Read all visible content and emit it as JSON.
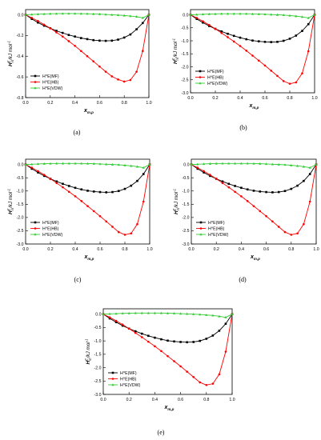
{
  "chart_data": [
    {
      "type": "line",
      "panel_label": "(a)",
      "xlabel": "x",
      "xlabel_sub": "m,p",
      "ylabel": "H",
      "ylabel_sup": "E",
      "ylabel_sub": "m",
      "ylabel_unit": "/kJ mol",
      "ylabel_unit_sup": "-1",
      "xlim": [
        0.0,
        1.0
      ],
      "ylim": [
        -0.8,
        0.05
      ],
      "xticks": [
        "0.0",
        "0.2",
        "0.4",
        "0.6",
        "0.8",
        "1.0"
      ],
      "yticks": [
        "0.0",
        "-0.2",
        "-0.4",
        "-0.6",
        "-0.8"
      ],
      "ytick_values": [
        0.0,
        -0.2,
        -0.4,
        -0.6,
        -0.8
      ],
      "legend_position": "bottom-left",
      "x": [
        0.0,
        0.05,
        0.1,
        0.15,
        0.2,
        0.25,
        0.3,
        0.35,
        0.4,
        0.45,
        0.5,
        0.55,
        0.6,
        0.65,
        0.7,
        0.75,
        0.8,
        0.85,
        0.9,
        0.95,
        1.0
      ],
      "series": [
        {
          "name": "H^E(MF)",
          "color": "#000000",
          "marker": "square",
          "values": [
            0.0,
            -0.04,
            -0.075,
            -0.105,
            -0.13,
            -0.155,
            -0.175,
            -0.195,
            -0.21,
            -0.225,
            -0.235,
            -0.245,
            -0.25,
            -0.252,
            -0.25,
            -0.24,
            -0.22,
            -0.19,
            -0.14,
            -0.08,
            0.0
          ]
        },
        {
          "name": "H^E(HB)",
          "color": "#ff0000",
          "marker": "circle",
          "values": [
            0.0,
            -0.03,
            -0.06,
            -0.095,
            -0.13,
            -0.17,
            -0.21,
            -0.255,
            -0.3,
            -0.35,
            -0.4,
            -0.45,
            -0.5,
            -0.55,
            -0.595,
            -0.625,
            -0.645,
            -0.63,
            -0.55,
            -0.35,
            0.0
          ]
        },
        {
          "name": "H^E(VDW)",
          "color": "#33cc33",
          "marker": "triangle",
          "values": [
            0.0,
            0.003,
            0.006,
            0.008,
            0.01,
            0.011,
            0.012,
            0.012,
            0.012,
            0.011,
            0.01,
            0.008,
            0.006,
            0.003,
            0.0,
            -0.003,
            -0.007,
            -0.012,
            -0.018,
            -0.03,
            0.0
          ]
        }
      ]
    },
    {
      "type": "line",
      "panel_label": "(b)",
      "xlabel": "x",
      "xlabel_sub": "m,p",
      "ylabel": "H",
      "ylabel_sup": "E",
      "ylabel_sub": "m",
      "ylabel_unit": "/kJ mol",
      "ylabel_unit_sup": "-1",
      "xlim": [
        0.0,
        1.0
      ],
      "ylim": [
        -3.0,
        0.2
      ],
      "xticks": [
        "0.0",
        "0.2",
        "0.4",
        "0.6",
        "0.8",
        "1.0"
      ],
      "yticks": [
        "0.0",
        "-0.5",
        "-1.0",
        "-1.5",
        "-2.0",
        "-2.5",
        "-3.0"
      ],
      "ytick_values": [
        0.0,
        -0.5,
        -1.0,
        -1.5,
        -2.0,
        -2.5,
        -3.0
      ],
      "legend_position": "bottom-left",
      "x": [
        0.0,
        0.05,
        0.1,
        0.15,
        0.2,
        0.25,
        0.3,
        0.35,
        0.4,
        0.45,
        0.5,
        0.55,
        0.6,
        0.65,
        0.7,
        0.75,
        0.8,
        0.85,
        0.9,
        0.95,
        1.0
      ],
      "series": [
        {
          "name": "H^E(MF)",
          "color": "#000000",
          "marker": "square",
          "values": [
            0.0,
            -0.16,
            -0.3,
            -0.43,
            -0.54,
            -0.64,
            -0.73,
            -0.81,
            -0.88,
            -0.94,
            -0.99,
            -1.02,
            -1.04,
            -1.05,
            -1.04,
            -1.0,
            -0.92,
            -0.8,
            -0.62,
            -0.36,
            0.0
          ]
        },
        {
          "name": "H^E(HB)",
          "color": "#ff0000",
          "marker": "circle",
          "values": [
            0.0,
            -0.12,
            -0.25,
            -0.39,
            -0.54,
            -0.7,
            -0.86,
            -1.03,
            -1.2,
            -1.38,
            -1.57,
            -1.76,
            -1.95,
            -2.15,
            -2.35,
            -2.55,
            -2.65,
            -2.6,
            -2.25,
            -1.4,
            0.0
          ]
        },
        {
          "name": "H^E(VDW)",
          "color": "#33cc33",
          "marker": "triangle",
          "values": [
            0.0,
            0.01,
            0.02,
            0.03,
            0.035,
            0.04,
            0.04,
            0.04,
            0.04,
            0.04,
            0.035,
            0.03,
            0.02,
            0.01,
            0.0,
            -0.01,
            -0.03,
            -0.05,
            -0.08,
            -0.12,
            0.0
          ]
        }
      ]
    },
    {
      "type": "line",
      "panel_label": "(c)",
      "xlabel": "x",
      "xlabel_sub": "m,p",
      "ylabel": "H",
      "ylabel_sup": "E",
      "ylabel_sub": "m",
      "ylabel_unit": "/kJ mol",
      "ylabel_unit_sup": "-1",
      "xlim": [
        0.0,
        1.0
      ],
      "ylim": [
        -3.0,
        0.2
      ],
      "xticks": [
        "0.0",
        "0.2",
        "0.4",
        "0.6",
        "0.8",
        "1.0"
      ],
      "yticks": [
        "0.0",
        "-0.5",
        "-1.0",
        "-1.5",
        "-2.0",
        "-2.5",
        "-3.0"
      ],
      "ytick_values": [
        0.0,
        -0.5,
        -1.0,
        -1.5,
        -2.0,
        -2.5,
        -3.0
      ],
      "legend_position": "bottom-left",
      "x": [
        0.0,
        0.05,
        0.1,
        0.15,
        0.2,
        0.25,
        0.3,
        0.35,
        0.4,
        0.45,
        0.5,
        0.55,
        0.6,
        0.65,
        0.7,
        0.75,
        0.8,
        0.85,
        0.9,
        0.95,
        1.0
      ],
      "series": [
        {
          "name": "H^E(MF)",
          "color": "#000000",
          "marker": "square",
          "values": [
            0.0,
            -0.16,
            -0.3,
            -0.43,
            -0.54,
            -0.64,
            -0.73,
            -0.81,
            -0.88,
            -0.94,
            -0.99,
            -1.02,
            -1.04,
            -1.05,
            -1.04,
            -1.0,
            -0.92,
            -0.8,
            -0.62,
            -0.36,
            0.0
          ]
        },
        {
          "name": "H^E(HB)",
          "color": "#ff0000",
          "marker": "circle",
          "values": [
            0.0,
            -0.12,
            -0.25,
            -0.39,
            -0.54,
            -0.7,
            -0.86,
            -1.03,
            -1.2,
            -1.38,
            -1.57,
            -1.76,
            -1.95,
            -2.15,
            -2.35,
            -2.55,
            -2.65,
            -2.6,
            -2.25,
            -1.4,
            0.0
          ]
        },
        {
          "name": "H^E(VDW)",
          "color": "#33cc33",
          "marker": "triangle",
          "values": [
            0.0,
            0.01,
            0.02,
            0.03,
            0.035,
            0.04,
            0.04,
            0.04,
            0.04,
            0.04,
            0.035,
            0.03,
            0.02,
            0.01,
            0.0,
            -0.01,
            -0.03,
            -0.05,
            -0.08,
            -0.12,
            0.0
          ]
        }
      ]
    },
    {
      "type": "line",
      "panel_label": "(d)",
      "xlabel": "x",
      "xlabel_sub": "m,p",
      "ylabel": "H",
      "ylabel_sup": "E",
      "ylabel_sub": "m",
      "ylabel_unit": "/kJ mol",
      "ylabel_unit_sup": "-1",
      "xlim": [
        0.0,
        1.0
      ],
      "ylim": [
        -3.0,
        0.2
      ],
      "xticks": [
        "0.0",
        "0.2",
        "0.4",
        "0.6",
        "0.8",
        "1.0"
      ],
      "yticks": [
        "0.0",
        "-0.5",
        "-1.0",
        "-1.5",
        "-2.0",
        "-2.5",
        "-3.0"
      ],
      "ytick_values": [
        0.0,
        -0.5,
        -1.0,
        -1.5,
        -2.0,
        -2.5,
        -3.0
      ],
      "legend_position": "bottom-left",
      "x": [
        0.0,
        0.05,
        0.1,
        0.15,
        0.2,
        0.25,
        0.3,
        0.35,
        0.4,
        0.45,
        0.5,
        0.55,
        0.6,
        0.65,
        0.7,
        0.75,
        0.8,
        0.85,
        0.9,
        0.95,
        1.0
      ],
      "series": [
        {
          "name": "H^E(MF)",
          "color": "#000000",
          "marker": "square",
          "values": [
            0.0,
            -0.16,
            -0.3,
            -0.43,
            -0.54,
            -0.64,
            -0.73,
            -0.81,
            -0.88,
            -0.94,
            -0.99,
            -1.02,
            -1.04,
            -1.05,
            -1.04,
            -1.0,
            -0.92,
            -0.8,
            -0.62,
            -0.36,
            0.0
          ]
        },
        {
          "name": "H^E(HB)",
          "color": "#ff0000",
          "marker": "circle",
          "values": [
            0.0,
            -0.12,
            -0.25,
            -0.39,
            -0.54,
            -0.7,
            -0.86,
            -1.03,
            -1.2,
            -1.38,
            -1.57,
            -1.76,
            -1.95,
            -2.15,
            -2.35,
            -2.55,
            -2.65,
            -2.6,
            -2.25,
            -1.4,
            0.0
          ]
        },
        {
          "name": "H^E(VDW)",
          "color": "#33cc33",
          "marker": "triangle",
          "values": [
            0.0,
            0.01,
            0.02,
            0.03,
            0.035,
            0.04,
            0.04,
            0.04,
            0.04,
            0.04,
            0.035,
            0.03,
            0.02,
            0.01,
            0.0,
            -0.01,
            -0.03,
            -0.05,
            -0.08,
            -0.12,
            0.0
          ]
        }
      ]
    },
    {
      "type": "line",
      "panel_label": "(e)",
      "xlabel": "x",
      "xlabel_sub": "m,p",
      "ylabel": "H",
      "ylabel_sup": "E",
      "ylabel_sub": "m",
      "ylabel_unit": "/kJ mol",
      "ylabel_unit_sup": "-1",
      "xlim": [
        0.0,
        1.0
      ],
      "ylim": [
        -3.0,
        0.2
      ],
      "xticks": [
        "0.0",
        "0.2",
        "0.4",
        "0.6",
        "0.8",
        "1.0"
      ],
      "yticks": [
        "0.0",
        "-0.5",
        "-1.0",
        "-1.5",
        "-2.0",
        "-2.5",
        "-3.0"
      ],
      "ytick_values": [
        0.0,
        -0.5,
        -1.0,
        -1.5,
        -2.0,
        -2.5,
        -3.0
      ],
      "legend_position": "bottom-left",
      "x": [
        0.0,
        0.05,
        0.1,
        0.15,
        0.2,
        0.25,
        0.3,
        0.35,
        0.4,
        0.45,
        0.5,
        0.55,
        0.6,
        0.65,
        0.7,
        0.75,
        0.8,
        0.85,
        0.9,
        0.95,
        1.0
      ],
      "series": [
        {
          "name": "H^E(MF)",
          "color": "#000000",
          "marker": "square",
          "values": [
            0.0,
            -0.16,
            -0.3,
            -0.43,
            -0.54,
            -0.64,
            -0.73,
            -0.81,
            -0.88,
            -0.94,
            -0.99,
            -1.02,
            -1.04,
            -1.05,
            -1.04,
            -1.0,
            -0.92,
            -0.8,
            -0.62,
            -0.36,
            0.0
          ]
        },
        {
          "name": "H^E(HB)",
          "color": "#ff0000",
          "marker": "circle",
          "values": [
            0.0,
            -0.12,
            -0.25,
            -0.39,
            -0.54,
            -0.7,
            -0.86,
            -1.03,
            -1.2,
            -1.38,
            -1.57,
            -1.76,
            -1.95,
            -2.15,
            -2.35,
            -2.55,
            -2.65,
            -2.6,
            -2.25,
            -1.4,
            0.0
          ]
        },
        {
          "name": "H^E(VDW)",
          "color": "#33cc33",
          "marker": "triangle",
          "values": [
            0.0,
            0.01,
            0.02,
            0.03,
            0.035,
            0.04,
            0.04,
            0.04,
            0.04,
            0.04,
            0.035,
            0.03,
            0.02,
            0.01,
            0.0,
            -0.01,
            -0.03,
            -0.05,
            -0.08,
            -0.12,
            0.0
          ]
        }
      ]
    }
  ]
}
